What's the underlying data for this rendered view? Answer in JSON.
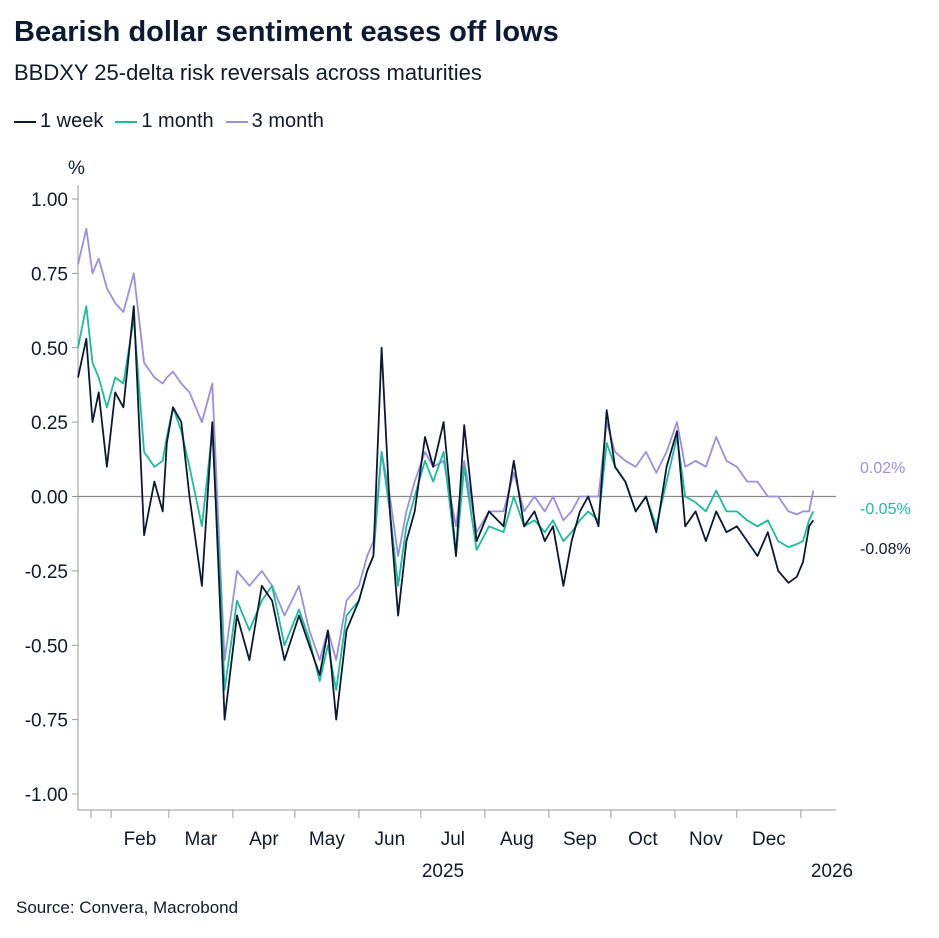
{
  "title": "Bearish dollar sentiment eases off lows",
  "subtitle": "BBDXY 25-delta risk reversals across maturities",
  "source": "Source: Convera, Macrobond",
  "colors": {
    "w1": "#0b1a33",
    "m1": "#1abc9c",
    "m3": "#9b8fe0",
    "zero": "#888888",
    "axis": "#999999"
  },
  "chart_data": {
    "type": "line",
    "ylabel": "%",
    "ylim": [
      -1.0,
      1.0
    ],
    "yticks": [
      "1.00",
      "0.75",
      "0.50",
      "0.25",
      "0.00",
      "-0.25",
      "-0.50",
      "-0.75",
      "-1.00"
    ],
    "xlim": [
      "2025-01-16",
      "2026-01-18"
    ],
    "month_labels": [
      "Feb",
      "Mar",
      "Apr",
      "May",
      "Jun",
      "Jul",
      "Aug",
      "Sep",
      "Oct",
      "Nov",
      "Dec"
    ],
    "year_labels": [
      "2025",
      "2026"
    ],
    "legend_position": "top-left",
    "grid": false,
    "series": [
      {
        "name": "1 week",
        "end_label": "-0.08%",
        "x": [
          "2025-01-16",
          "2025-01-20",
          "2025-01-23",
          "2025-01-26",
          "2025-01-30",
          "2025-02-03",
          "2025-02-07",
          "2025-02-12",
          "2025-02-17",
          "2025-02-22",
          "2025-02-26",
          "2025-02-28",
          "2025-03-03",
          "2025-03-07",
          "2025-03-11",
          "2025-03-17",
          "2025-03-22",
          "2025-03-26",
          "2025-03-28",
          "2025-04-03",
          "2025-04-09",
          "2025-04-15",
          "2025-04-20",
          "2025-04-26",
          "2025-05-03",
          "2025-05-08",
          "2025-05-13",
          "2025-05-17",
          "2025-05-21",
          "2025-05-26",
          "2025-06-01",
          "2025-06-05",
          "2025-06-08",
          "2025-06-12",
          "2025-06-16",
          "2025-06-20",
          "2025-06-24",
          "2025-06-28",
          "2025-07-03",
          "2025-07-07",
          "2025-07-12",
          "2025-07-18",
          "2025-07-22",
          "2025-07-28",
          "2025-08-03",
          "2025-08-10",
          "2025-08-15",
          "2025-08-20",
          "2025-08-25",
          "2025-08-30",
          "2025-09-03",
          "2025-09-08",
          "2025-09-12",
          "2025-09-16",
          "2025-09-20",
          "2025-09-25",
          "2025-09-29",
          "2025-10-03",
          "2025-10-08",
          "2025-10-13",
          "2025-10-18",
          "2025-10-23",
          "2025-10-28",
          "2025-11-02",
          "2025-11-06",
          "2025-11-11",
          "2025-11-16",
          "2025-11-21",
          "2025-11-26",
          "2025-12-01",
          "2025-12-06",
          "2025-12-11",
          "2025-12-16",
          "2025-12-21",
          "2025-12-26",
          "2025-12-30",
          "2026-01-02",
          "2026-01-05",
          "2026-01-07"
        ],
        "y": [
          0.4,
          0.53,
          0.25,
          0.35,
          0.1,
          0.35,
          0.3,
          0.64,
          -0.13,
          0.05,
          -0.05,
          0.18,
          0.3,
          0.25,
          0.0,
          -0.3,
          0.25,
          -0.4,
          -0.75,
          -0.4,
          -0.55,
          -0.3,
          -0.35,
          -0.55,
          -0.4,
          -0.5,
          -0.6,
          -0.45,
          -0.75,
          -0.45,
          -0.35,
          -0.25,
          -0.2,
          0.5,
          -0.05,
          -0.4,
          -0.15,
          -0.05,
          0.2,
          0.1,
          0.25,
          -0.2,
          0.24,
          -0.15,
          -0.05,
          -0.1,
          0.12,
          -0.1,
          -0.05,
          -0.15,
          -0.1,
          -0.3,
          -0.15,
          -0.05,
          0.0,
          -0.1,
          0.29,
          0.1,
          0.05,
          -0.05,
          0.0,
          -0.12,
          0.1,
          0.22,
          -0.1,
          -0.05,
          -0.15,
          -0.05,
          -0.12,
          -0.1,
          -0.15,
          -0.2,
          -0.12,
          -0.25,
          -0.29,
          -0.27,
          -0.22,
          -0.1,
          -0.08
        ]
      },
      {
        "name": "1 month",
        "end_label": "-0.05%",
        "x": [
          "2025-01-16",
          "2025-01-20",
          "2025-01-23",
          "2025-01-26",
          "2025-01-30",
          "2025-02-03",
          "2025-02-07",
          "2025-02-12",
          "2025-02-17",
          "2025-02-22",
          "2025-02-26",
          "2025-02-28",
          "2025-03-03",
          "2025-03-07",
          "2025-03-11",
          "2025-03-17",
          "2025-03-22",
          "2025-03-26",
          "2025-03-28",
          "2025-04-03",
          "2025-04-09",
          "2025-04-15",
          "2025-04-20",
          "2025-04-26",
          "2025-05-03",
          "2025-05-08",
          "2025-05-13",
          "2025-05-17",
          "2025-05-21",
          "2025-05-26",
          "2025-06-01",
          "2025-06-05",
          "2025-06-08",
          "2025-06-12",
          "2025-06-16",
          "2025-06-20",
          "2025-06-24",
          "2025-06-28",
          "2025-07-03",
          "2025-07-07",
          "2025-07-12",
          "2025-07-18",
          "2025-07-22",
          "2025-07-28",
          "2025-08-03",
          "2025-08-10",
          "2025-08-15",
          "2025-08-20",
          "2025-08-25",
          "2025-08-30",
          "2025-09-03",
          "2025-09-08",
          "2025-09-12",
          "2025-09-16",
          "2025-09-20",
          "2025-09-25",
          "2025-09-29",
          "2025-10-03",
          "2025-10-08",
          "2025-10-13",
          "2025-10-18",
          "2025-10-23",
          "2025-10-28",
          "2025-11-02",
          "2025-11-06",
          "2025-11-11",
          "2025-11-16",
          "2025-11-21",
          "2025-11-26",
          "2025-12-01",
          "2025-12-06",
          "2025-12-11",
          "2025-12-16",
          "2025-12-21",
          "2025-12-26",
          "2025-12-30",
          "2026-01-02",
          "2026-01-05",
          "2026-01-07"
        ],
        "y": [
          0.5,
          0.64,
          0.45,
          0.4,
          0.3,
          0.4,
          0.38,
          0.6,
          0.15,
          0.1,
          0.12,
          0.2,
          0.3,
          0.22,
          0.1,
          -0.1,
          0.22,
          -0.3,
          -0.65,
          -0.35,
          -0.45,
          -0.35,
          -0.3,
          -0.5,
          -0.38,
          -0.48,
          -0.62,
          -0.5,
          -0.65,
          -0.4,
          -0.35,
          -0.25,
          -0.2,
          0.15,
          -0.05,
          -0.3,
          -0.1,
          0.0,
          0.12,
          0.05,
          0.15,
          -0.2,
          0.1,
          -0.18,
          -0.1,
          -0.12,
          0.0,
          -0.1,
          -0.08,
          -0.12,
          -0.08,
          -0.15,
          -0.12,
          -0.08,
          -0.05,
          -0.08,
          0.18,
          0.1,
          0.05,
          -0.05,
          0.0,
          -0.1,
          0.05,
          0.2,
          0.0,
          -0.02,
          -0.05,
          0.02,
          -0.05,
          -0.05,
          -0.08,
          -0.1,
          -0.08,
          -0.15,
          -0.17,
          -0.16,
          -0.15,
          -0.08,
          -0.05
        ]
      },
      {
        "name": "3 month",
        "end_label": "0.02%",
        "x": [
          "2025-01-16",
          "2025-01-20",
          "2025-01-23",
          "2025-01-26",
          "2025-01-30",
          "2025-02-03",
          "2025-02-07",
          "2025-02-12",
          "2025-02-17",
          "2025-02-22",
          "2025-02-26",
          "2025-02-28",
          "2025-03-03",
          "2025-03-07",
          "2025-03-11",
          "2025-03-17",
          "2025-03-22",
          "2025-03-26",
          "2025-03-28",
          "2025-04-03",
          "2025-04-09",
          "2025-04-15",
          "2025-04-20",
          "2025-04-26",
          "2025-05-03",
          "2025-05-08",
          "2025-05-13",
          "2025-05-17",
          "2025-05-21",
          "2025-05-26",
          "2025-06-01",
          "2025-06-05",
          "2025-06-08",
          "2025-06-12",
          "2025-06-16",
          "2025-06-20",
          "2025-06-24",
          "2025-06-28",
          "2025-07-03",
          "2025-07-07",
          "2025-07-12",
          "2025-07-18",
          "2025-07-22",
          "2025-07-28",
          "2025-08-03",
          "2025-08-10",
          "2025-08-15",
          "2025-08-20",
          "2025-08-25",
          "2025-08-30",
          "2025-09-03",
          "2025-09-08",
          "2025-09-12",
          "2025-09-16",
          "2025-09-20",
          "2025-09-25",
          "2025-09-29",
          "2025-10-03",
          "2025-10-08",
          "2025-10-13",
          "2025-10-18",
          "2025-10-23",
          "2025-10-28",
          "2025-11-02",
          "2025-11-06",
          "2025-11-11",
          "2025-11-16",
          "2025-11-21",
          "2025-11-26",
          "2025-12-01",
          "2025-12-06",
          "2025-12-11",
          "2025-12-16",
          "2025-12-21",
          "2025-12-26",
          "2025-12-30",
          "2026-01-02",
          "2026-01-05",
          "2026-01-07"
        ],
        "y": [
          0.78,
          0.9,
          0.75,
          0.8,
          0.7,
          0.65,
          0.62,
          0.75,
          0.45,
          0.4,
          0.38,
          0.4,
          0.42,
          0.38,
          0.35,
          0.25,
          0.38,
          -0.25,
          -0.55,
          -0.25,
          -0.3,
          -0.25,
          -0.3,
          -0.4,
          -0.3,
          -0.45,
          -0.55,
          -0.45,
          -0.55,
          -0.35,
          -0.3,
          -0.2,
          -0.15,
          0.15,
          0.0,
          -0.2,
          -0.05,
          0.05,
          0.15,
          0.1,
          0.12,
          -0.1,
          0.12,
          -0.12,
          -0.05,
          -0.05,
          0.08,
          -0.05,
          0.0,
          -0.05,
          0.0,
          -0.08,
          -0.05,
          0.0,
          0.0,
          0.0,
          0.25,
          0.15,
          0.12,
          0.1,
          0.15,
          0.08,
          0.15,
          0.25,
          0.1,
          0.12,
          0.1,
          0.2,
          0.12,
          0.1,
          0.05,
          0.05,
          0.0,
          0.0,
          -0.05,
          -0.06,
          -0.05,
          -0.05,
          0.02
        ]
      }
    ]
  }
}
